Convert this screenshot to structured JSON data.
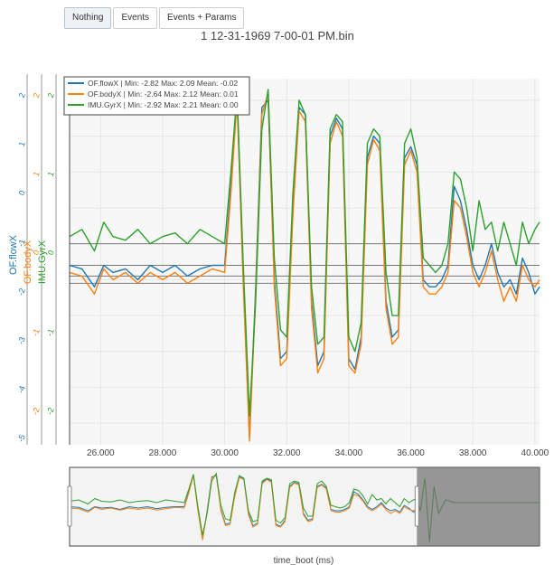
{
  "toolbar": {
    "buttons": [
      {
        "label": "Nothing",
        "active": true
      },
      {
        "label": "Events",
        "active": false
      },
      {
        "label": "Events + Params",
        "active": false
      }
    ]
  },
  "chart_data": {
    "type": "line",
    "title": "1 12-31-1969 7-00-01 PM.bin",
    "xlabel": "time_boot (ms)",
    "xlim": [
      25000,
      40150
    ],
    "xticks": [
      "26.000",
      "28.000",
      "30.000",
      "32.000",
      "34.000",
      "36.000",
      "38.000",
      "40.000"
    ],
    "xtick_values": [
      26000,
      28000,
      30000,
      32000,
      34000,
      36000,
      38000,
      40000
    ],
    "ylim": [
      -2.8,
      2.3
    ],
    "grid": true,
    "legend_position": "top-left",
    "axes": [
      {
        "label": "OF.flowX",
        "color": "#1f77b4",
        "ticks": [
          "2",
          "1",
          "0",
          "-1",
          "-2",
          "-3",
          "-4",
          "-5"
        ]
      },
      {
        "label": "OF.bodyX",
        "color": "#ff7f0e",
        "ticks": [
          "2",
          "1",
          "0",
          "-1",
          "-2"
        ]
      },
      {
        "label": "IMU.GyrX",
        "color": "#2ca02c",
        "ticks": [
          "2",
          "1",
          "0",
          "-1",
          "-2"
        ]
      }
    ],
    "series": [
      {
        "name": "OF.flowX | Min: -2.82    Max: 2.09    Mean: -0.02",
        "color": "#1f77b4",
        "x": [
          25000,
          25400,
          25800,
          26100,
          26400,
          26800,
          27200,
          27600,
          28000,
          28400,
          28800,
          29200,
          29600,
          30000,
          30200,
          30400,
          30600,
          30800,
          31000,
          31200,
          31400,
          31600,
          31800,
          32000,
          32200,
          32400,
          32600,
          32800,
          33000,
          33200,
          33400,
          33600,
          33800,
          34000,
          34200,
          34400,
          34600,
          34800,
          35000,
          35200,
          35400,
          35600,
          35800,
          36000,
          36200,
          36400,
          36600,
          36800,
          37000,
          37200,
          37400,
          37600,
          37800,
          38000,
          38200,
          38400,
          38600,
          38800,
          39000,
          39200,
          39400,
          39600,
          39800,
          40000,
          40150
        ],
        "y": [
          -0.3,
          -0.35,
          -0.6,
          -0.3,
          -0.4,
          -0.35,
          -0.5,
          -0.3,
          -0.4,
          -0.3,
          -0.45,
          -0.35,
          -0.3,
          -0.3,
          0.8,
          2.05,
          -0.5,
          -2.7,
          -0.6,
          1.9,
          2.0,
          -0.5,
          -1.6,
          -1.5,
          0.5,
          1.9,
          1.8,
          -0.8,
          -1.7,
          -1.5,
          1.5,
          1.75,
          1.6,
          -1.6,
          -1.75,
          -1.3,
          1.2,
          1.5,
          1.4,
          -0.8,
          -1.3,
          -1.2,
          1.2,
          1.35,
          1.1,
          -0.5,
          -0.6,
          -0.6,
          -0.5,
          -0.3,
          0.8,
          0.6,
          0.2,
          -0.3,
          -0.5,
          -0.3,
          0.0,
          -0.4,
          -0.6,
          -0.5,
          -0.7,
          -0.2,
          -0.4,
          -0.7,
          -0.6
        ]
      },
      {
        "name": "OF.bodyX | Min: -2.64    Max: 2.12    Mean: 0.01",
        "color": "#ff7f0e",
        "x": [
          25000,
          25400,
          25800,
          26100,
          26400,
          26800,
          27200,
          27600,
          28000,
          28400,
          28800,
          29200,
          29600,
          30000,
          30200,
          30400,
          30600,
          30800,
          31000,
          31200,
          31400,
          31600,
          31800,
          32000,
          32200,
          32400,
          32600,
          32800,
          33000,
          33200,
          33400,
          33600,
          33800,
          34000,
          34200,
          34400,
          34600,
          34800,
          35000,
          35200,
          35400,
          35600,
          35800,
          36000,
          36200,
          36400,
          36600,
          36800,
          37000,
          37200,
          37400,
          37600,
          37800,
          38000,
          38200,
          38400,
          38600,
          38800,
          39000,
          39200,
          39400,
          39600,
          39800,
          40000,
          40150
        ],
        "y": [
          -0.4,
          -0.45,
          -0.7,
          -0.35,
          -0.5,
          -0.4,
          -0.55,
          -0.4,
          -0.5,
          -0.4,
          -0.55,
          -0.45,
          -0.35,
          -0.4,
          0.7,
          2.0,
          -0.6,
          -2.75,
          -0.7,
          1.8,
          2.1,
          -0.6,
          -1.7,
          -1.6,
          0.4,
          1.85,
          1.7,
          -0.9,
          -1.8,
          -1.6,
          1.4,
          1.7,
          1.5,
          -1.7,
          -1.8,
          -1.4,
          1.1,
          1.45,
          1.3,
          -0.9,
          -1.4,
          -1.3,
          1.1,
          1.3,
          1.0,
          -0.6,
          -0.7,
          -0.7,
          -0.6,
          -0.4,
          0.6,
          0.5,
          0.1,
          -0.4,
          -0.6,
          -0.4,
          -0.1,
          -0.5,
          -0.8,
          -0.6,
          -0.8,
          -0.3,
          -0.5,
          -0.6,
          -0.5
        ]
      },
      {
        "name": "IMU.GyrX | Min: -2.92    Max: 2.21    Mean: 0.00",
        "color": "#2ca02c",
        "x": [
          25000,
          25400,
          25800,
          26100,
          26400,
          26800,
          27200,
          27600,
          28000,
          28400,
          28800,
          29200,
          29600,
          30000,
          30200,
          30400,
          30600,
          30800,
          31000,
          31200,
          31400,
          31600,
          31800,
          32000,
          32200,
          32400,
          32600,
          32800,
          33000,
          33200,
          33400,
          33600,
          33800,
          34000,
          34200,
          34400,
          34600,
          34800,
          35000,
          35200,
          35400,
          35600,
          35800,
          36000,
          36200,
          36400,
          36600,
          36800,
          37000,
          37200,
          37400,
          37600,
          37800,
          38000,
          38200,
          38400,
          38600,
          38800,
          39000,
          39200,
          39400,
          39600,
          39800,
          40000,
          40150
        ],
        "y": [
          0.1,
          0.2,
          -0.1,
          0.3,
          0.1,
          0.05,
          0.2,
          0.0,
          0.1,
          0.15,
          0.0,
          0.2,
          0.1,
          0.0,
          1.0,
          2.1,
          -0.3,
          -2.4,
          -0.8,
          1.6,
          2.15,
          -0.2,
          -1.2,
          -1.3,
          0.7,
          2.0,
          1.8,
          -0.6,
          -1.4,
          -1.3,
          1.6,
          1.8,
          1.7,
          -1.3,
          -1.5,
          -1.1,
          1.4,
          1.6,
          1.5,
          -0.4,
          -1.0,
          -1.0,
          1.4,
          1.6,
          1.2,
          -0.2,
          -0.3,
          -0.4,
          -0.3,
          0.0,
          1.0,
          0.9,
          0.5,
          -0.1,
          0.6,
          0.2,
          0.3,
          -0.1,
          0.3,
          0.0,
          -0.3,
          0.3,
          0.0,
          0.2,
          0.3
        ]
      }
    ],
    "hlines": [
      0.0,
      -0.3,
      -0.45,
      -0.55
    ],
    "rangeslider": {
      "selection": [
        25000,
        40150
      ],
      "full_range": [
        25000,
        45500
      ]
    }
  }
}
